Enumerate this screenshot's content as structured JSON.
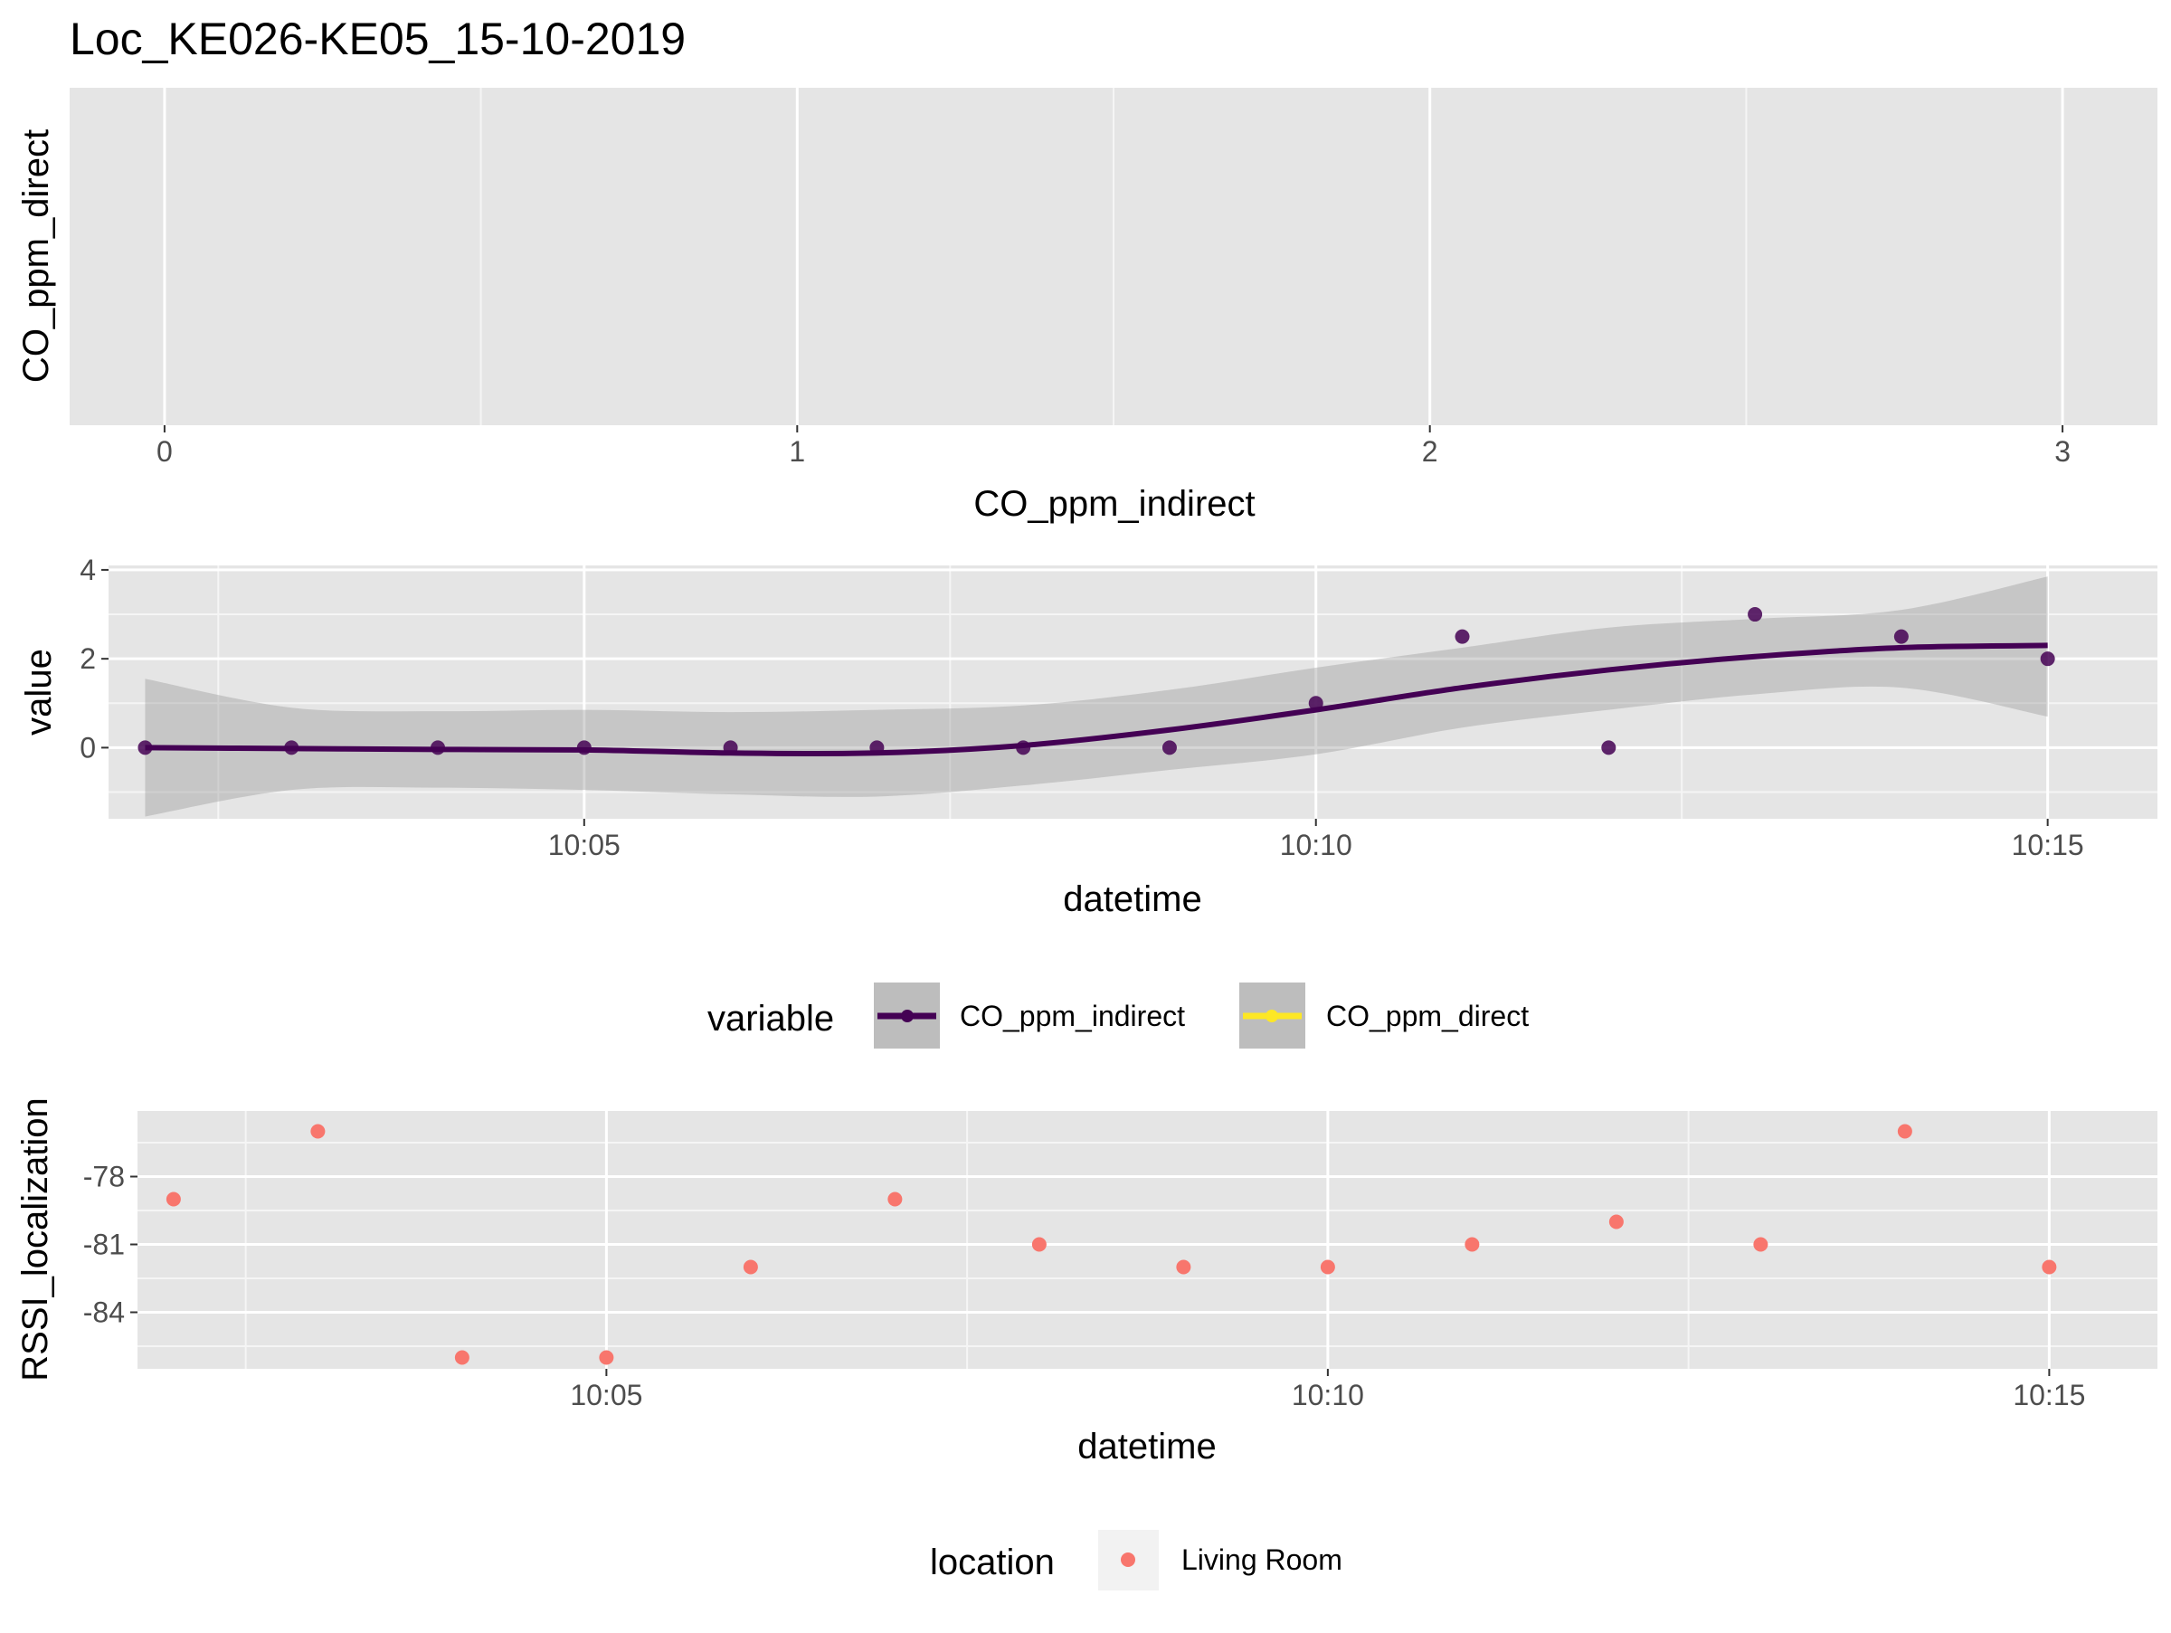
{
  "title": "Loc_KE026-KE05_15-10-2019",
  "chart_data": [
    {
      "type": "scatter",
      "panel": "top",
      "xlabel": "CO_ppm_indirect",
      "ylabel": "CO_ppm_direct",
      "xlim": [
        -0.15,
        3.15
      ],
      "xticks": [
        0,
        1,
        2,
        3
      ],
      "xtick_labels": [
        "0",
        "1",
        "2",
        "3"
      ],
      "points": [],
      "grid": true
    },
    {
      "type": "line",
      "panel": "middle",
      "xlabel": "datetime",
      "ylabel": "value",
      "x_unit": "time",
      "xlim": [
        "10:01:45",
        "10:15:45"
      ],
      "xticks": [
        "10:05",
        "10:10",
        "10:15"
      ],
      "ylim": [
        -1.6,
        4.1
      ],
      "yticks": [
        0,
        2,
        4
      ],
      "grid": true,
      "series": [
        {
          "name": "CO_ppm_indirect",
          "color": "#440154",
          "points": [
            {
              "x": "10:02",
              "y": 0
            },
            {
              "x": "10:03",
              "y": 0
            },
            {
              "x": "10:04",
              "y": 0
            },
            {
              "x": "10:05",
              "y": 0
            },
            {
              "x": "10:06",
              "y": 0
            },
            {
              "x": "10:07",
              "y": 0
            },
            {
              "x": "10:08",
              "y": 0
            },
            {
              "x": "10:09",
              "y": 0
            },
            {
              "x": "10:10",
              "y": 1
            },
            {
              "x": "10:11",
              "y": 2.5
            },
            {
              "x": "10:12",
              "y": 0
            },
            {
              "x": "10:13",
              "y": 3
            },
            {
              "x": "10:14",
              "y": 2.5
            },
            {
              "x": "10:15",
              "y": 2
            }
          ],
          "smooth": [
            {
              "x": "10:02",
              "y": 0.0,
              "lo": -1.55,
              "hi": 1.55
            },
            {
              "x": "10:03",
              "y": -0.02,
              "lo": -0.95,
              "hi": 0.9
            },
            {
              "x": "10:04",
              "y": -0.04,
              "lo": -0.9,
              "hi": 0.82
            },
            {
              "x": "10:05",
              "y": -0.05,
              "lo": -0.95,
              "hi": 0.85
            },
            {
              "x": "10:06",
              "y": -0.12,
              "lo": -1.05,
              "hi": 0.8
            },
            {
              "x": "10:07",
              "y": -0.12,
              "lo": -1.1,
              "hi": 0.85
            },
            {
              "x": "10:08",
              "y": 0.05,
              "lo": -0.85,
              "hi": 0.95
            },
            {
              "x": "10:09",
              "y": 0.4,
              "lo": -0.5,
              "hi": 1.3
            },
            {
              "x": "10:10",
              "y": 0.85,
              "lo": -0.15,
              "hi": 1.8
            },
            {
              "x": "10:11",
              "y": 1.35,
              "lo": 0.45,
              "hi": 2.25
            },
            {
              "x": "10:12",
              "y": 1.75,
              "lo": 0.85,
              "hi": 2.7
            },
            {
              "x": "10:13",
              "y": 2.05,
              "lo": 1.2,
              "hi": 2.9
            },
            {
              "x": "10:14",
              "y": 2.25,
              "lo": 1.35,
              "hi": 3.1
            },
            {
              "x": "10:15",
              "y": 2.3,
              "lo": 0.7,
              "hi": 3.85
            }
          ]
        },
        {
          "name": "CO_ppm_direct",
          "color": "#fde725",
          "points": []
        }
      ],
      "legend": {
        "title": "variable",
        "entries": [
          "CO_ppm_indirect",
          "CO_ppm_direct"
        ],
        "placement": "bottom"
      }
    },
    {
      "type": "scatter",
      "panel": "bottom",
      "xlabel": "datetime",
      "ylabel": "RSSI_localization",
      "x_unit": "time",
      "xlim": [
        "10:01:45",
        "10:15:45"
      ],
      "xticks": [
        "10:05",
        "10:10",
        "10:15"
      ],
      "ylim": [
        -86.5,
        -75.1
      ],
      "yticks": [
        -78,
        -81,
        -84
      ],
      "grid": true,
      "series": [
        {
          "name": "Living Room",
          "color": "#f8766d",
          "points": [
            {
              "x": "10:02",
              "y": -79
            },
            {
              "x": "10:03",
              "y": -76
            },
            {
              "x": "10:04",
              "y": -86
            },
            {
              "x": "10:05",
              "y": -86
            },
            {
              "x": "10:06",
              "y": -82
            },
            {
              "x": "10:07",
              "y": -79
            },
            {
              "x": "10:08",
              "y": -81
            },
            {
              "x": "10:09",
              "y": -82
            },
            {
              "x": "10:10",
              "y": -82
            },
            {
              "x": "10:11",
              "y": -81
            },
            {
              "x": "10:12",
              "y": -80
            },
            {
              "x": "10:13",
              "y": -81
            },
            {
              "x": "10:14",
              "y": -76
            },
            {
              "x": "10:15",
              "y": -82
            }
          ]
        }
      ],
      "legend": {
        "title": "location",
        "entries": [
          "Living Room"
        ],
        "placement": "bottom"
      }
    }
  ]
}
